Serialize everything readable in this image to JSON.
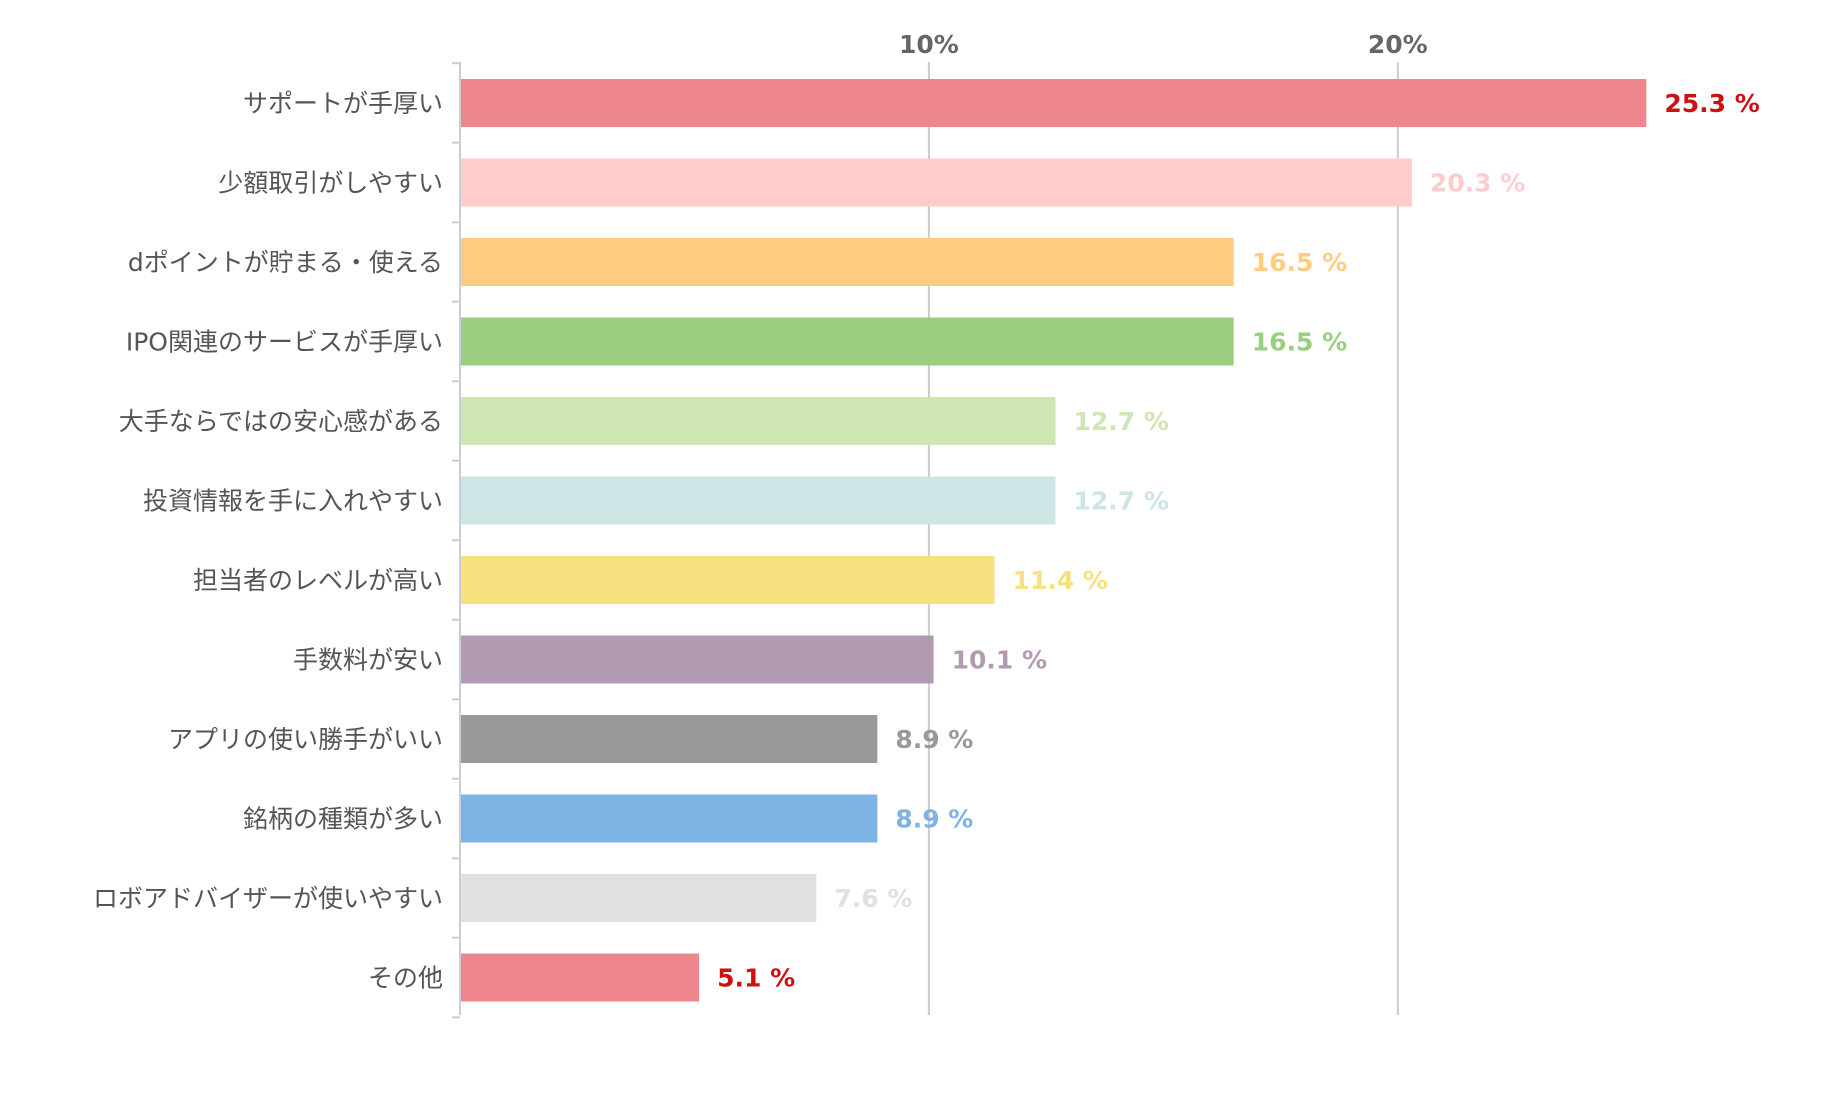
{
  "chart_data": {
    "type": "bar",
    "orientation": "horizontal",
    "categories": [
      "サポートが手厚い",
      "少額取引がしやすい",
      "dポイントが貯まる・使える",
      "IPO関連のサービスが手厚い",
      "大手ならではの安心感がある",
      "投資情報を手に入れやすい",
      "担当者のレベルが高い",
      "手数料が安い",
      "アプリの使い勝手がいい",
      "銘柄の種類が多い",
      "ロボアドバイザーが使いやすい",
      "その他"
    ],
    "values": [
      25.3,
      20.3,
      16.5,
      16.5,
      12.7,
      12.7,
      11.4,
      10.1,
      8.9,
      8.9,
      7.6,
      5.1
    ],
    "value_labels": [
      "25.3 %",
      "20.3 %",
      "16.5 %",
      "16.5 %",
      "12.7 %",
      "12.7 %",
      "11.4 %",
      "10.1 %",
      "8.9 %",
      "8.9 %",
      "7.6 %",
      "5.1 %"
    ],
    "bar_colors": [
      "#ee868d",
      "#ffcccc",
      "#ffcc80",
      "#99cf7f",
      "#cde6b4",
      "#cce5e5",
      "#f7e17e",
      "#b39ab3",
      "#999999",
      "#7fb2e5",
      "#e0e0e0",
      "#ee868d"
    ],
    "label_colors": [
      "#cc1111",
      "#ffcccc",
      "#ffcc80",
      "#99cf7f",
      "#cde6b4",
      "#cce5e5",
      "#f7e17e",
      "#b39ab3",
      "#999999",
      "#7fb2e5",
      "#e0e0e0",
      "#cc1111"
    ],
    "xticks": [
      10,
      20
    ],
    "xtick_labels": [
      "10%",
      "20%"
    ],
    "xlim": [
      0,
      28.3
    ],
    "tick_position": "top",
    "grid": true,
    "legend": "none",
    "title": "",
    "xlabel": "",
    "ylabel": ""
  }
}
